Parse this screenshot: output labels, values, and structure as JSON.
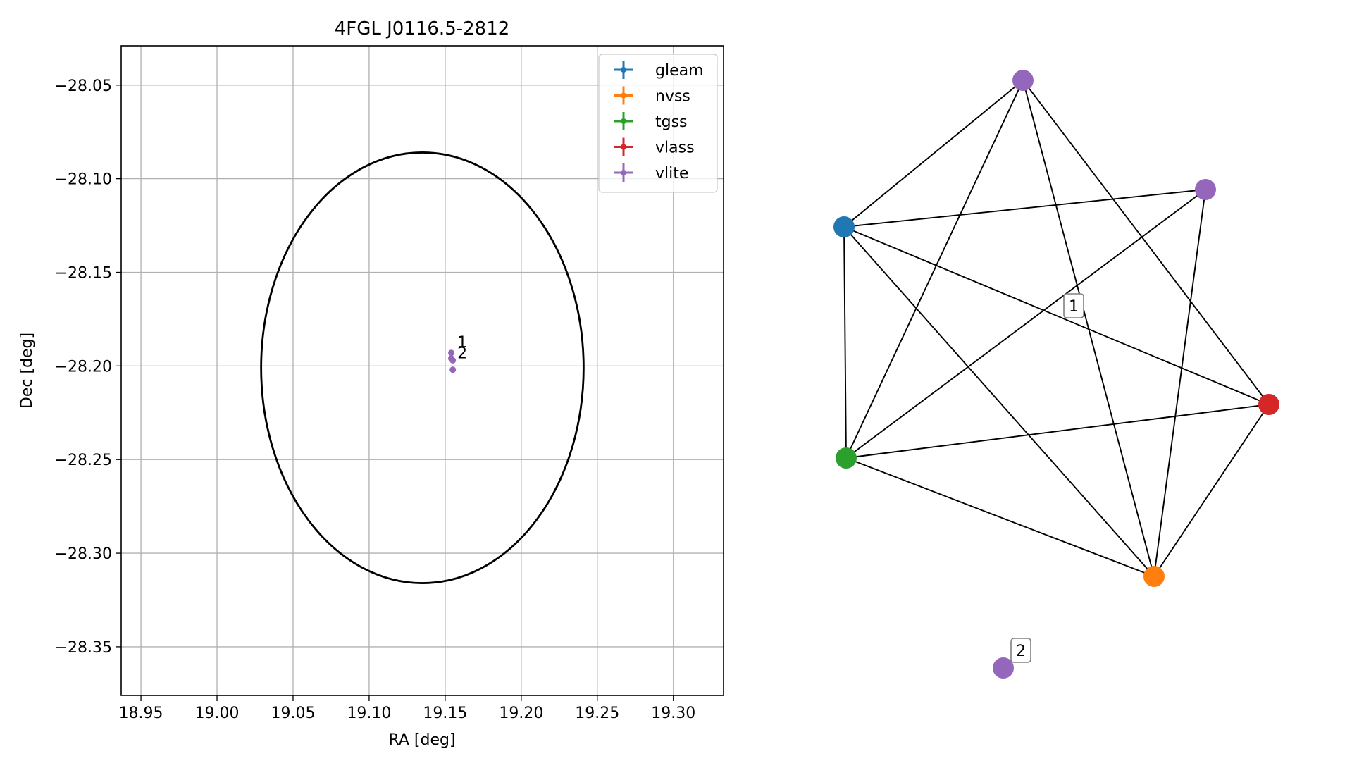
{
  "chart_data": [
    {
      "type": "scatter",
      "title": "4FGL J0116.5-2812",
      "xlabel": "RA [deg]",
      "ylabel": "Dec [deg]",
      "xlim": [
        18.937,
        19.333
      ],
      "ylim": [
        -28.376,
        -28.029
      ],
      "xticks": [
        18.95,
        19.0,
        19.05,
        19.1,
        19.15,
        19.2,
        19.25,
        19.3
      ],
      "xtick_labels": [
        "18.95",
        "19.00",
        "19.05",
        "19.10",
        "19.15",
        "19.20",
        "19.25",
        "19.30"
      ],
      "yticks": [
        -28.05,
        -28.1,
        -28.15,
        -28.2,
        -28.25,
        -28.3,
        -28.35
      ],
      "ytick_labels": [
        "−28.05",
        "−28.10",
        "−28.15",
        "−28.20",
        "−28.25",
        "−28.30",
        "−28.35"
      ],
      "grid": true,
      "legend_position": "top-right",
      "legend": [
        {
          "label": "gleam",
          "color": "#1f77b4"
        },
        {
          "label": "nvss",
          "color": "#ff7f0e"
        },
        {
          "label": "tgss",
          "color": "#2ca02c"
        },
        {
          "label": "vlass",
          "color": "#d62728"
        },
        {
          "label": "vlite",
          "color": "#9467bd"
        }
      ],
      "ellipse": {
        "center": [
          19.135,
          -28.201
        ],
        "semi_axis_ra": 0.106,
        "semi_axis_dec": 0.115,
        "color": "#000000"
      },
      "points": [
        {
          "survey": "vlite",
          "ra": 19.154,
          "dec": -28.193,
          "color": "#9467bd"
        },
        {
          "survey": "vlite",
          "ra": 19.154,
          "dec": -28.196,
          "color": "#9467bd"
        },
        {
          "survey": "vlite",
          "ra": 19.155,
          "dec": -28.197,
          "color": "#9467bd"
        },
        {
          "survey": "vlite",
          "ra": 19.155,
          "dec": -28.202,
          "color": "#9467bd"
        }
      ],
      "annotations": [
        {
          "text": "1",
          "ra": 19.158,
          "dec": -28.19
        },
        {
          "text": "2",
          "ra": 19.158,
          "dec": -28.196
        }
      ]
    },
    {
      "type": "network",
      "nodes": [
        {
          "id": "vlite_top",
          "survey": "vlite",
          "color": "#9467bd"
        },
        {
          "id": "vlite_right",
          "survey": "vlite",
          "color": "#9467bd"
        },
        {
          "id": "gleam",
          "survey": "gleam",
          "color": "#1f77b4"
        },
        {
          "id": "vlass",
          "survey": "vlass",
          "color": "#d62728"
        },
        {
          "id": "tgss",
          "survey": "tgss",
          "color": "#2ca02c"
        },
        {
          "id": "nvss",
          "survey": "nvss",
          "color": "#ff7f0e"
        },
        {
          "id": "vlite_lone",
          "survey": "vlite",
          "color": "#9467bd"
        }
      ],
      "edges": [
        [
          "vlite_top",
          "gleam"
        ],
        [
          "vlite_top",
          "tgss"
        ],
        [
          "vlite_top",
          "nvss"
        ],
        [
          "vlite_top",
          "vlass"
        ],
        [
          "gleam",
          "vlite_right"
        ],
        [
          "gleam",
          "tgss"
        ],
        [
          "gleam",
          "nvss"
        ],
        [
          "gleam",
          "vlass"
        ],
        [
          "vlite_right",
          "tgss"
        ],
        [
          "vlite_right",
          "nvss"
        ],
        [
          "tgss",
          "vlass"
        ],
        [
          "tgss",
          "nvss"
        ],
        [
          "nvss",
          "vlass"
        ]
      ],
      "labels": [
        {
          "text": "1",
          "group": "connected"
        },
        {
          "text": "2",
          "group": "lone"
        }
      ]
    }
  ]
}
